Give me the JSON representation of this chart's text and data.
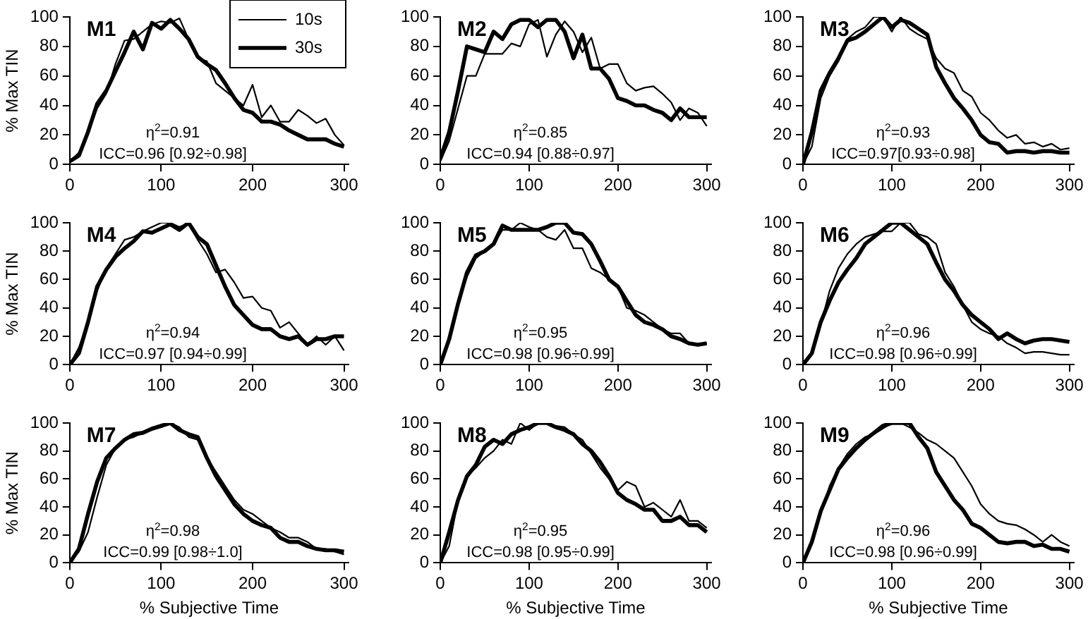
{
  "chart_data": [
    {
      "type": "line",
      "title": "M1",
      "ylabel": "% Max TIN",
      "legend": "top right",
      "x": [
        0,
        10,
        20,
        30,
        40,
        50,
        60,
        70,
        80,
        90,
        100,
        110,
        120,
        130,
        140,
        150,
        160,
        170,
        180,
        190,
        200,
        210,
        220,
        230,
        240,
        250,
        260,
        270,
        280,
        290,
        300
      ],
      "xlim": [
        0,
        305
      ],
      "xticks": [
        0,
        100,
        200,
        300
      ],
      "ylim": [
        0,
        100
      ],
      "yticks": [
        0,
        20,
        40,
        60,
        80,
        100
      ],
      "annotations": [
        "η$^{2}$=0.91",
        "ICC=0.96 [0.92÷0.98]"
      ],
      "series": [
        {
          "name": "10s",
          "color": "#000000",
          "values": [
            2,
            8,
            22,
            38,
            48,
            68,
            84,
            85,
            90,
            95,
            97,
            96,
            99,
            85,
            72,
            70,
            55,
            50,
            45,
            40,
            54,
            32,
            40,
            29,
            29,
            37,
            33,
            28,
            31,
            20,
            13
          ]
        },
        {
          "name": "30s",
          "color": "#000000",
          "values": [
            2,
            6,
            22,
            41,
            50,
            63,
            76,
            90,
            78,
            96,
            92,
            98,
            92,
            85,
            73,
            68,
            64,
            55,
            45,
            37,
            35,
            29,
            29,
            27,
            23,
            20,
            17,
            17,
            17,
            14,
            12
          ]
        }
      ]
    },
    {
      "type": "line",
      "title": "M2",
      "x": [
        0,
        10,
        20,
        30,
        40,
        50,
        60,
        70,
        80,
        90,
        100,
        110,
        120,
        130,
        140,
        150,
        160,
        170,
        180,
        190,
        200,
        210,
        220,
        230,
        240,
        250,
        260,
        270,
        280,
        290,
        300
      ],
      "xlim": [
        0,
        305
      ],
      "xticks": [
        0,
        100,
        200,
        300
      ],
      "ylim": [
        0,
        100
      ],
      "yticks": [
        0,
        20,
        40,
        60,
        80,
        100
      ],
      "annotations": [
        "η$^{2}$=0.85",
        "ICC=0.94 [0.88÷0.97]"
      ],
      "series": [
        {
          "color": "#000000",
          "values": [
            2,
            16,
            38,
            60,
            60,
            75,
            75,
            75,
            82,
            80,
            95,
            98,
            73,
            88,
            97,
            90,
            76,
            86,
            65,
            68,
            68,
            55,
            50,
            52,
            53,
            48,
            42,
            30,
            38,
            35,
            26
          ]
        },
        {
          "color": "#000000",
          "values": [
            4,
            22,
            50,
            80,
            78,
            76,
            90,
            85,
            95,
            98,
            98,
            93,
            98,
            98,
            90,
            72,
            88,
            65,
            65,
            58,
            45,
            43,
            40,
            40,
            37,
            35,
            30,
            38,
            32,
            32,
            32
          ]
        }
      ]
    },
    {
      "type": "line",
      "title": "M3",
      "x": [
        0,
        10,
        20,
        30,
        40,
        50,
        60,
        70,
        80,
        90,
        100,
        110,
        120,
        130,
        140,
        150,
        160,
        170,
        180,
        190,
        200,
        210,
        220,
        230,
        240,
        250,
        260,
        270,
        280,
        290,
        300
      ],
      "xlim": [
        0,
        305
      ],
      "xticks": [
        0,
        100,
        200,
        300
      ],
      "ylim": [
        0,
        100
      ],
      "yticks": [
        0,
        20,
        40,
        60,
        80,
        100
      ],
      "annotations": [
        "η$^{2}$=0.93",
        "ICC=0.97[0.93÷0.98]"
      ],
      "series": [
        {
          "color": "#000000",
          "values": [
            0,
            12,
            45,
            60,
            70,
            85,
            90,
            93,
            100,
            100,
            90,
            100,
            92,
            88,
            85,
            72,
            65,
            62,
            50,
            46,
            35,
            30,
            23,
            18,
            20,
            14,
            15,
            12,
            14,
            10,
            11
          ]
        },
        {
          "color": "#000000",
          "values": [
            0,
            22,
            50,
            62,
            72,
            84,
            86,
            90,
            95,
            100,
            93,
            98,
            96,
            92,
            88,
            66,
            55,
            45,
            38,
            30,
            20,
            15,
            14,
            8,
            9,
            9,
            8,
            9,
            9,
            8,
            8
          ]
        }
      ]
    },
    {
      "type": "line",
      "title": "M4",
      "ylabel": "% Max TIN",
      "x": [
        0,
        10,
        20,
        30,
        40,
        50,
        60,
        70,
        80,
        90,
        100,
        110,
        120,
        130,
        140,
        150,
        160,
        170,
        180,
        190,
        200,
        210,
        220,
        230,
        240,
        250,
        260,
        270,
        280,
        290,
        300
      ],
      "xlim": [
        0,
        305
      ],
      "xticks": [
        0,
        100,
        200,
        300
      ],
      "ylim": [
        0,
        100
      ],
      "yticks": [
        0,
        20,
        40,
        60,
        80,
        100
      ],
      "annotations": [
        "η$^{2}$=0.94",
        "ICC=0.97 [0.94÷0.99]"
      ],
      "series": [
        {
          "color": "#000000",
          "values": [
            0,
            12,
            30,
            52,
            68,
            78,
            88,
            90,
            94,
            97,
            100,
            100,
            97,
            100,
            88,
            78,
            65,
            67,
            58,
            47,
            48,
            40,
            38,
            26,
            30,
            22,
            14,
            20,
            14,
            20,
            10
          ]
        },
        {
          "color": "#000000",
          "values": [
            0,
            8,
            30,
            55,
            67,
            76,
            82,
            87,
            94,
            93,
            96,
            99,
            95,
            100,
            90,
            85,
            70,
            55,
            42,
            35,
            28,
            25,
            25,
            20,
            18,
            20,
            14,
            18,
            18,
            20,
            20
          ]
        }
      ]
    },
    {
      "type": "line",
      "title": "M5",
      "x": [
        0,
        10,
        20,
        30,
        40,
        50,
        60,
        70,
        80,
        90,
        100,
        110,
        120,
        130,
        140,
        150,
        160,
        170,
        180,
        190,
        200,
        210,
        220,
        230,
        240,
        250,
        260,
        270,
        280,
        290,
        300
      ],
      "xlim": [
        0,
        305
      ],
      "xticks": [
        0,
        100,
        200,
        300
      ],
      "ylim": [
        0,
        100
      ],
      "yticks": [
        0,
        20,
        40,
        60,
        80,
        100
      ],
      "annotations": [
        "η$^{2}$=0.95",
        "ICC=0.98 [0.96÷0.99]"
      ],
      "series": [
        {
          "color": "#000000",
          "values": [
            0,
            18,
            43,
            62,
            75,
            80,
            85,
            95,
            95,
            100,
            97,
            95,
            90,
            88,
            95,
            82,
            82,
            68,
            65,
            60,
            55,
            40,
            38,
            35,
            30,
            25,
            22,
            22,
            15,
            15,
            15
          ]
        },
        {
          "color": "#000000",
          "values": [
            0,
            18,
            43,
            65,
            77,
            80,
            85,
            98,
            95,
            95,
            95,
            95,
            97,
            100,
            100,
            93,
            92,
            85,
            73,
            60,
            55,
            45,
            35,
            30,
            28,
            25,
            20,
            18,
            15,
            14,
            15
          ]
        }
      ]
    },
    {
      "type": "line",
      "title": "M6",
      "x": [
        0,
        10,
        20,
        30,
        40,
        50,
        60,
        70,
        80,
        90,
        100,
        110,
        120,
        130,
        140,
        150,
        160,
        170,
        180,
        190,
        200,
        210,
        220,
        230,
        240,
        250,
        260,
        270,
        280,
        290,
        300
      ],
      "xlim": [
        0,
        305
      ],
      "xticks": [
        0,
        100,
        200,
        300
      ],
      "ylim": [
        0,
        100
      ],
      "yticks": [
        0,
        20,
        40,
        60,
        80,
        100
      ],
      "annotations": [
        "η$^{2}$=0.96",
        "ICC=0.98 [0.96÷0.99]"
      ],
      "series": [
        {
          "color": "#000000",
          "values": [
            0,
            8,
            28,
            52,
            68,
            78,
            85,
            90,
            92,
            94,
            94,
            100,
            100,
            92,
            90,
            85,
            65,
            55,
            42,
            30,
            25,
            22,
            20,
            15,
            12,
            8,
            9,
            9,
            8,
            7,
            7
          ]
        },
        {
          "color": "#000000",
          "values": [
            0,
            8,
            30,
            45,
            58,
            67,
            75,
            85,
            90,
            95,
            100,
            100,
            95,
            90,
            85,
            72,
            60,
            52,
            42,
            35,
            30,
            25,
            18,
            22,
            18,
            15,
            17,
            18,
            18,
            17,
            16
          ]
        }
      ]
    },
    {
      "type": "line",
      "title": "M7",
      "ylabel": "% Max TIN",
      "xlabel": "% Subjective Time",
      "x": [
        0,
        10,
        20,
        30,
        40,
        50,
        60,
        70,
        80,
        90,
        100,
        110,
        120,
        130,
        140,
        150,
        160,
        170,
        180,
        190,
        200,
        210,
        220,
        230,
        240,
        250,
        260,
        270,
        280,
        290,
        300
      ],
      "xlim": [
        0,
        305
      ],
      "xticks": [
        0,
        100,
        200,
        300
      ],
      "ylim": [
        0,
        100
      ],
      "yticks": [
        0,
        20,
        40,
        60,
        80,
        100
      ],
      "annotations": [
        "η$^{2}$=0.98",
        "ICC=0.99 [0.98÷1.0]"
      ],
      "series": [
        {
          "color": "#000000",
          "values": [
            0,
            8,
            22,
            47,
            70,
            82,
            88,
            90,
            93,
            95,
            97,
            100,
            97,
            90,
            88,
            75,
            65,
            55,
            45,
            38,
            35,
            30,
            25,
            22,
            18,
            18,
            15,
            10,
            10,
            8,
            6
          ]
        },
        {
          "color": "#000000",
          "values": [
            0,
            10,
            35,
            58,
            75,
            82,
            88,
            92,
            93,
            96,
            98,
            100,
            95,
            92,
            90,
            75,
            62,
            52,
            42,
            35,
            30,
            27,
            25,
            18,
            15,
            15,
            12,
            10,
            9,
            9,
            8
          ]
        }
      ]
    },
    {
      "type": "line",
      "title": "M8",
      "xlabel": "% Subjective Time",
      "x": [
        0,
        10,
        20,
        30,
        40,
        50,
        60,
        70,
        80,
        90,
        100,
        110,
        120,
        130,
        140,
        150,
        160,
        170,
        180,
        190,
        200,
        210,
        220,
        230,
        240,
        250,
        260,
        270,
        280,
        290,
        300
      ],
      "xlim": [
        0,
        305
      ],
      "xticks": [
        0,
        100,
        200,
        300
      ],
      "ylim": [
        0,
        100
      ],
      "yticks": [
        0,
        20,
        40,
        60,
        80,
        100
      ],
      "annotations": [
        "η$^{2}$=0.95",
        "ICC=0.98 [0.95÷0.99]"
      ],
      "series": [
        {
          "color": "#000000",
          "values": [
            0,
            12,
            45,
            62,
            68,
            75,
            80,
            88,
            85,
            100,
            95,
            100,
            100,
            98,
            97,
            92,
            88,
            78,
            68,
            60,
            52,
            58,
            55,
            40,
            43,
            38,
            33,
            45,
            30,
            30,
            25
          ]
        },
        {
          "color": "#000000",
          "values": [
            0,
            22,
            45,
            62,
            70,
            83,
            88,
            85,
            92,
            95,
            97,
            100,
            100,
            97,
            95,
            92,
            85,
            80,
            72,
            62,
            50,
            45,
            42,
            38,
            38,
            30,
            30,
            33,
            27,
            27,
            22
          ]
        }
      ]
    },
    {
      "type": "line",
      "title": "M9",
      "xlabel": "% Subjective Time",
      "x": [
        0,
        10,
        20,
        30,
        40,
        50,
        60,
        70,
        80,
        90,
        100,
        110,
        120,
        130,
        140,
        150,
        160,
        170,
        180,
        190,
        200,
        210,
        220,
        230,
        240,
        250,
        260,
        270,
        280,
        290,
        300
      ],
      "xlim": [
        0,
        305
      ],
      "xticks": [
        0,
        100,
        200,
        300
      ],
      "ylim": [
        0,
        100
      ],
      "yticks": [
        0,
        20,
        40,
        60,
        80,
        100
      ],
      "annotations": [
        "η$^{2}$=0.96",
        "ICC=0.98 [0.96÷0.99]"
      ],
      "series": [
        {
          "color": "#000000",
          "values": [
            0,
            15,
            35,
            55,
            68,
            78,
            85,
            90,
            92,
            96,
            100,
            100,
            97,
            93,
            88,
            85,
            80,
            75,
            65,
            55,
            42,
            35,
            30,
            28,
            27,
            24,
            20,
            15,
            20,
            15,
            12
          ]
        },
        {
          "color": "#000000",
          "values": [
            0,
            15,
            37,
            52,
            67,
            75,
            82,
            88,
            93,
            98,
            100,
            100,
            100,
            90,
            82,
            65,
            55,
            45,
            38,
            28,
            25,
            20,
            15,
            14,
            15,
            15,
            12,
            13,
            10,
            10,
            8
          ]
        }
      ]
    }
  ]
}
